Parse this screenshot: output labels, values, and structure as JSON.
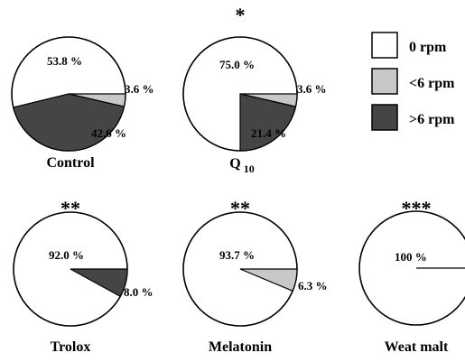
{
  "chart_data": {
    "type": "pie",
    "legend": {
      "placement": "top-right",
      "entries": [
        {
          "label": "0 rpm",
          "color": "#ffffff"
        },
        {
          "label": "<6 rpm",
          "color": "#c8c8c8"
        },
        {
          "label": ">6 rpm",
          "color": "#454545"
        }
      ]
    },
    "charts": [
      {
        "name": "Control",
        "significance": "",
        "slices": [
          {
            "category": "0 rpm",
            "value": 53.8,
            "label": "53.8 %"
          },
          {
            "category": "<6 rpm",
            "value": 3.6,
            "label": "3.6 %"
          },
          {
            "category": ">6 rpm",
            "value": 42.6,
            "label": "42.6 %"
          }
        ]
      },
      {
        "name": "Q",
        "name_subscript": "10",
        "significance": "*",
        "slices": [
          {
            "category": "0 rpm",
            "value": 75.0,
            "label": "75.0 %"
          },
          {
            "category": "<6 rpm",
            "value": 3.6,
            "label": "3.6 %"
          },
          {
            "category": ">6 rpm",
            "value": 21.4,
            "label": "21.4 %"
          }
        ]
      },
      {
        "name": "Trolox",
        "significance": "**",
        "slices": [
          {
            "category": "0 rpm",
            "value": 92.0,
            "label": "92.0 %"
          },
          {
            "category": "<6 rpm",
            "value": 0,
            "label": ""
          },
          {
            "category": ">6 rpm",
            "value": 8.0,
            "label": "8.0 %"
          }
        ]
      },
      {
        "name": "Melatonin",
        "significance": "**",
        "slices": [
          {
            "category": "0 rpm",
            "value": 93.7,
            "label": "93.7 %"
          },
          {
            "category": "<6 rpm",
            "value": 6.3,
            "label": "6.3 %"
          },
          {
            "category": ">6 rpm",
            "value": 0,
            "label": ""
          }
        ]
      },
      {
        "name": "Weat malt",
        "significance": "***",
        "slices": [
          {
            "category": "0 rpm",
            "value": 100,
            "label": "100 %"
          },
          {
            "category": "<6 rpm",
            "value": 0,
            "label": ""
          },
          {
            "category": ">6 rpm",
            "value": 0,
            "label": ""
          }
        ]
      }
    ]
  }
}
